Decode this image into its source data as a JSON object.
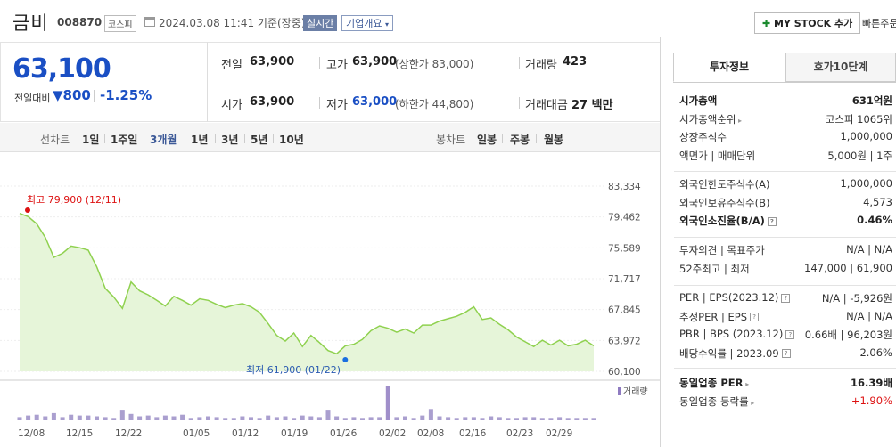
{
  "header": {
    "name": "금비",
    "code": "008870",
    "market": "코스피",
    "datetime": "2024.03.08 11:41 기준(장중)",
    "realtime_btn": "실시간",
    "company_btn": "기업개요",
    "mystock_btn": "MY STOCK 추가",
    "fast_btn": "빠른주문"
  },
  "price": {
    "current": "63,100",
    "change_label": "전일대비",
    "change_value": "800",
    "change_pct": "-1.25%"
  },
  "quote": {
    "prev_label": "전일",
    "prev_value": "63,900",
    "high_label": "고가",
    "high_value": "63,900",
    "upper_limit": "(상한가 83,000)",
    "volume_label": "거래량",
    "volume_value": "423",
    "open_label": "시가",
    "open_value": "63,900",
    "low_label": "저가",
    "low_value": "63,000",
    "lower_limit": "(하한가 44,800)",
    "amount_label": "거래대금",
    "amount_value": "27 백만"
  },
  "periods": {
    "line_label": "선차트",
    "line_items": [
      "1일",
      "1주일",
      "3개월",
      "1년",
      "3년",
      "5년",
      "10년"
    ],
    "selected": "3개월",
    "candle_label": "봉차트",
    "candle_items": [
      "일봉",
      "주봉",
      "월봉"
    ]
  },
  "side": {
    "tab_info": "투자정보",
    "tab_hoga": "호가10단계",
    "g1": [
      {
        "label": "시가총액",
        "value": "631억원",
        "bold": true
      },
      {
        "label": "시가총액순위",
        "value": "코스피 1065위"
      },
      {
        "label": "상장주식수",
        "value": "1,000,000"
      },
      {
        "label": "액면가 | 매매단위",
        "value": "5,000원 | 1주"
      }
    ],
    "g2": [
      {
        "label": "외국인한도주식수(A)",
        "value": "1,000,000"
      },
      {
        "label": "외국인보유주식수(B)",
        "value": "4,573"
      },
      {
        "label": "외국인소진율(B/A)",
        "value": "0.46%",
        "bold": true
      }
    ],
    "g3": [
      {
        "label": "투자의견 | 목표주가",
        "value": "N/A | N/A"
      },
      {
        "label": "52주최고 | 최저",
        "value": "147,000 | 61,900"
      }
    ],
    "g4": [
      {
        "label": "PER | EPS(2023.12)",
        "value": "N/A | -5,926원"
      },
      {
        "label": "추정PER | EPS",
        "value": "N/A | N/A"
      },
      {
        "label": "PBR | BPS (2023.12)",
        "value": "0.66배 | 96,203원"
      },
      {
        "label": "배당수익률 | 2023.09",
        "value": "2.06%"
      }
    ],
    "g5": [
      {
        "label": "동일업종 PER",
        "value": "16.39배",
        "bold": true
      },
      {
        "label": "동일업종 등락률",
        "value": "+1.90%",
        "red": true
      }
    ]
  },
  "chart_data": {
    "type": "area",
    "y_ticks": [
      "83,334",
      "79,462",
      "75,589",
      "71,717",
      "67,845",
      "63,972",
      "60,100"
    ],
    "ylim": [
      60100,
      83334
    ],
    "x_ticks": [
      "12/08",
      "12/15",
      "12/22",
      "01/05",
      "01/12",
      "01/19",
      "01/26",
      "02/02",
      "02/08",
      "02/16",
      "02/23",
      "02/29"
    ],
    "high_label": "최고 79,900 (12/11)",
    "low_label": "최저 61,900 (01/22)",
    "volume_label": "거래량",
    "series": [
      {
        "values": [
          79900,
          79500,
          78600,
          76900,
          74400,
          74900,
          75800,
          75600,
          75300,
          73200,
          70500,
          69400,
          68000,
          71300,
          70200,
          69700,
          69000,
          68300,
          69500,
          69000,
          68400,
          69200,
          69000,
          68500,
          68100,
          68400,
          68600,
          68200,
          67500,
          66100,
          64600,
          63900,
          64900,
          63200,
          64600,
          63700,
          62700,
          62300,
          63300,
          63500,
          64100,
          65200,
          65800,
          65500,
          65000,
          65400,
          64900,
          65900,
          65900,
          66400,
          66700,
          67000,
          67500,
          68200,
          66600,
          66800,
          66000,
          65300,
          64400,
          63800,
          63200,
          64000,
          63400,
          64000,
          63300,
          63500,
          64000,
          63300
        ]
      }
    ],
    "volume": [
      4,
      6,
      7,
      5,
      9,
      4,
      7,
      6,
      6,
      5,
      4,
      3,
      12,
      8,
      5,
      6,
      4,
      6,
      5,
      7,
      3,
      4,
      5,
      4,
      3,
      3,
      5,
      4,
      3,
      6,
      4,
      5,
      3,
      6,
      5,
      4,
      12,
      5,
      3,
      4,
      3,
      4,
      4,
      42,
      4,
      5,
      3,
      6,
      14,
      5,
      4,
      3,
      4,
      4,
      3,
      5,
      4,
      3,
      3,
      4,
      4,
      3,
      3,
      4,
      3,
      3,
      3,
      3
    ],
    "colors": {
      "line": "#8fd14f",
      "fill": "#e6f5d9",
      "volume": "#9b8ec7",
      "volume_peak": "#8f7bc1"
    }
  }
}
